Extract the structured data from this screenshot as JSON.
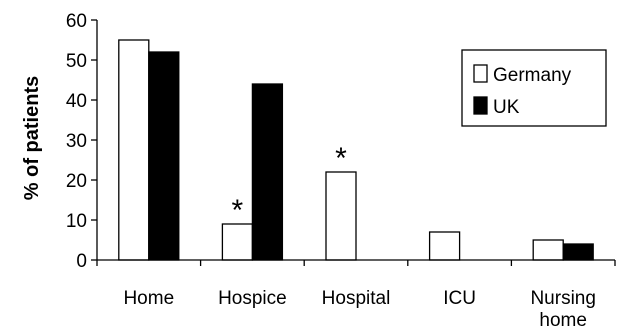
{
  "chart_data": {
    "type": "bar",
    "title": "",
    "xlabel": "",
    "ylabel": "% of patients",
    "ylim": [
      0,
      60
    ],
    "yticks": [
      "0",
      "10",
      "20",
      "30",
      "40",
      "50",
      "60"
    ],
    "categories": [
      "Home",
      "Hospice",
      "Hospital",
      "ICU",
      "Nursing home"
    ],
    "category_lines": [
      [
        "Home"
      ],
      [
        "Hospice"
      ],
      [
        "Hospital"
      ],
      [
        "ICU"
      ],
      [
        "Nursing",
        "home"
      ]
    ],
    "series": [
      {
        "name": "Germany",
        "values": [
          55,
          9,
          22,
          7,
          5
        ],
        "color": "#ffffff"
      },
      {
        "name": "UK",
        "values": [
          52,
          44,
          0,
          0,
          4
        ],
        "color": "#000000"
      }
    ],
    "annotations": [
      {
        "text": "*",
        "category": "Hospice",
        "series": "Germany"
      },
      {
        "text": "*",
        "category": "Hospital",
        "series": "Germany"
      }
    ],
    "legend_position": "top-right",
    "grid": false
  }
}
